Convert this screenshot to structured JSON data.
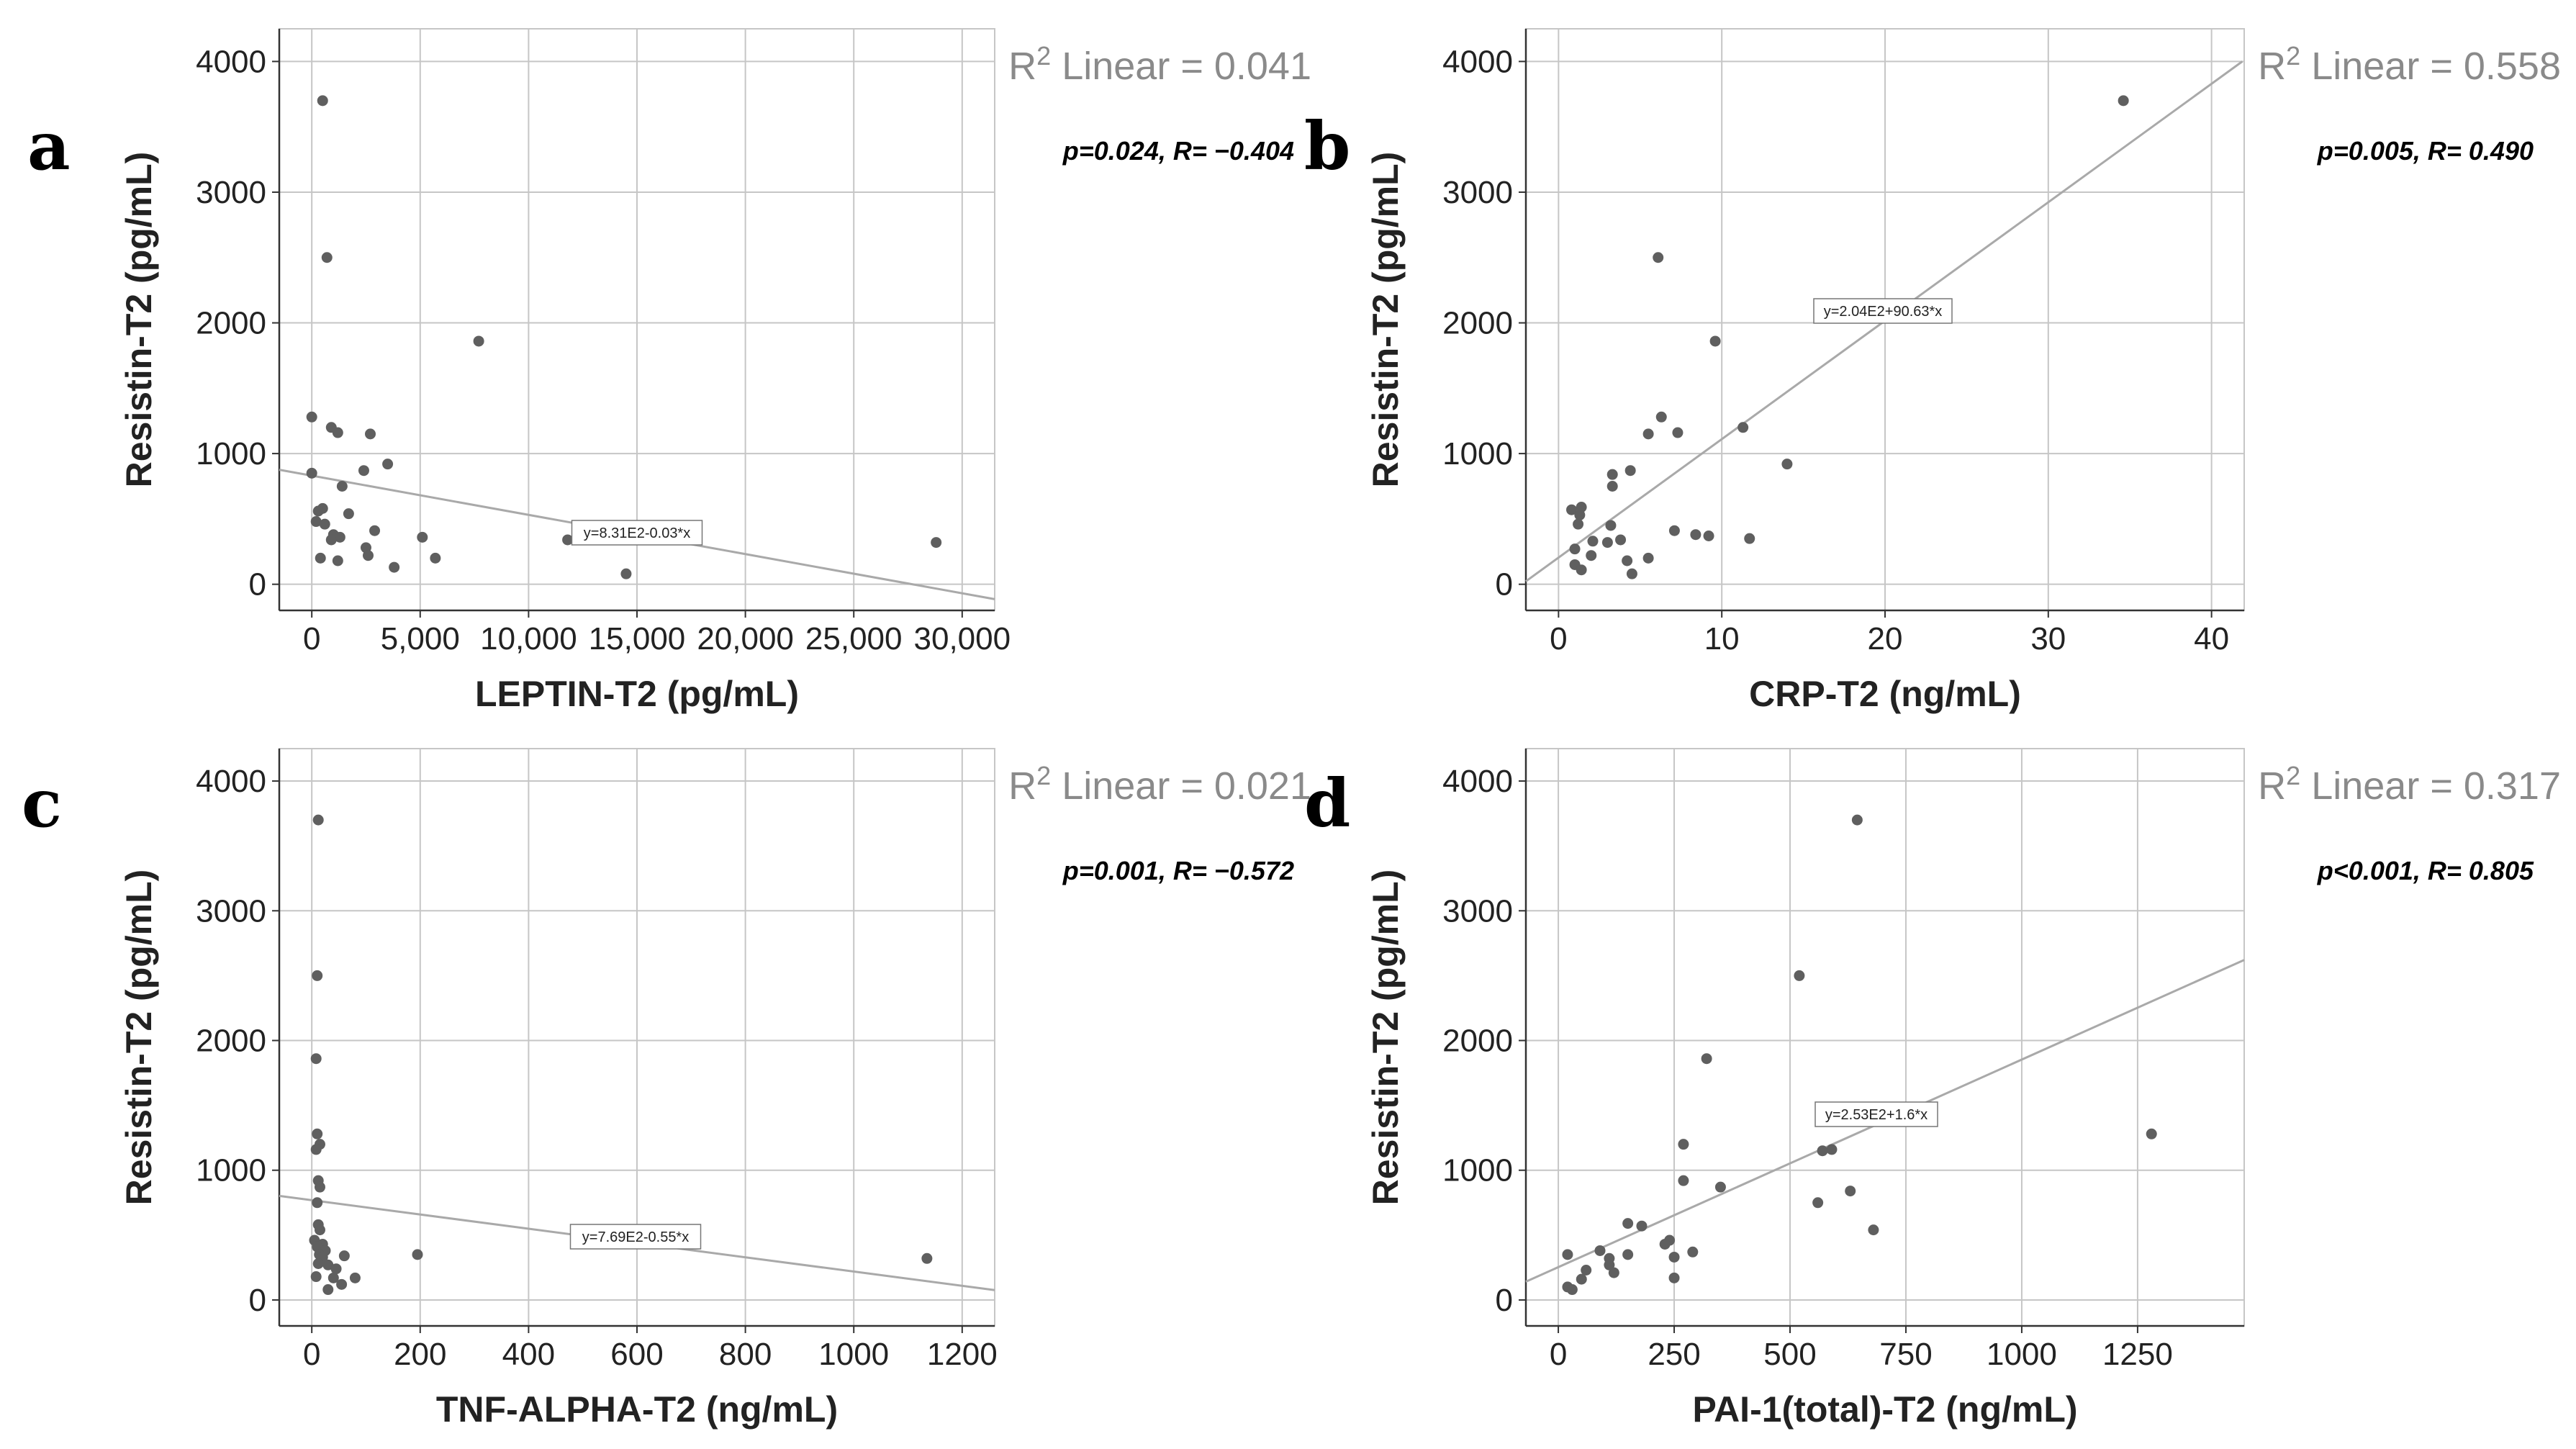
{
  "chart_data": [
    {
      "type": "scatter",
      "panel": "a",
      "title": "",
      "xlabel": "LEPTIN-T2 (pg/mL)",
      "ylabel": "Resistin-T2 (pg/mL)",
      "xlim": [
        -1500,
        31500
      ],
      "ylim": [
        -200,
        4250
      ],
      "xticks": [
        0,
        5000,
        10000,
        15000,
        20000,
        25000,
        30000
      ],
      "xtick_labels": [
        "0",
        "5,000",
        "10,000",
        "15,000",
        "20,000",
        "25,000",
        "30,000"
      ],
      "yticks": [
        0,
        1000,
        2000,
        3000,
        4000
      ],
      "ytick_labels": [
        "0",
        "1000",
        "2000",
        "3000",
        "4000"
      ],
      "r2_label": "R",
      "r2_sup": "2",
      "r2_text": " Linear = 0.041",
      "stats": "p=0.024, R= −0.404",
      "fit_label": "y=8.31E2-0.03*x",
      "fit": {
        "intercept": 831,
        "slope": -0.03
      },
      "points": [
        [
          500,
          3700
        ],
        [
          700,
          2500
        ],
        [
          7700,
          1860
        ],
        [
          0,
          1280
        ],
        [
          900,
          1200
        ],
        [
          1200,
          1160
        ],
        [
          2700,
          1150
        ],
        [
          3500,
          920
        ],
        [
          2400,
          870
        ],
        [
          0,
          850
        ],
        [
          1400,
          750
        ],
        [
          500,
          580
        ],
        [
          300,
          560
        ],
        [
          1700,
          540
        ],
        [
          200,
          480
        ],
        [
          600,
          460
        ],
        [
          2900,
          410
        ],
        [
          1000,
          380
        ],
        [
          1300,
          360
        ],
        [
          5100,
          360
        ],
        [
          900,
          340
        ],
        [
          11800,
          340
        ],
        [
          28800,
          320
        ],
        [
          2500,
          280
        ],
        [
          2600,
          220
        ],
        [
          400,
          200
        ],
        [
          1200,
          180
        ],
        [
          5700,
          200
        ],
        [
          3800,
          130
        ],
        [
          14500,
          80
        ]
      ]
    },
    {
      "type": "scatter",
      "panel": "b",
      "title": "",
      "xlabel": "CRP-T2 (ng/mL)",
      "ylabel": "Resistin-T2 (pg/mL)",
      "xlim": [
        -2,
        42
      ],
      "ylim": [
        -200,
        4250
      ],
      "xticks": [
        0,
        10,
        20,
        30,
        40
      ],
      "xtick_labels": [
        "0",
        "10",
        "20",
        "30",
        "40"
      ],
      "yticks": [
        0,
        1000,
        2000,
        3000,
        4000
      ],
      "ytick_labels": [
        "0",
        "1000",
        "2000",
        "3000",
        "4000"
      ],
      "r2_label": "R",
      "r2_sup": "2",
      "r2_text": " Linear = 0.558",
      "stats": "p=0.005, R= 0.490",
      "fit_label": "y=2.04E2+90.63*x",
      "fit": {
        "intercept": 204,
        "slope": 90.63
      },
      "points": [
        [
          34.6,
          3700
        ],
        [
          6.1,
          2500
        ],
        [
          9.6,
          1860
        ],
        [
          6.3,
          1280
        ],
        [
          7.3,
          1160
        ],
        [
          11.3,
          1200
        ],
        [
          5.5,
          1150
        ],
        [
          14,
          920
        ],
        [
          4.4,
          870
        ],
        [
          3.3,
          840
        ],
        [
          3.3,
          750
        ],
        [
          1.4,
          590
        ],
        [
          0.8,
          570
        ],
        [
          1.3,
          530
        ],
        [
          1.2,
          460
        ],
        [
          3.2,
          450
        ],
        [
          7.1,
          410
        ],
        [
          8.4,
          380
        ],
        [
          9.2,
          370
        ],
        [
          11.7,
          350
        ],
        [
          2.1,
          330
        ],
        [
          3.8,
          340
        ],
        [
          3,
          320
        ],
        [
          1,
          270
        ],
        [
          2,
          220
        ],
        [
          5.5,
          200
        ],
        [
          4.2,
          180
        ],
        [
          1,
          150
        ],
        [
          1.4,
          110
        ],
        [
          4.5,
          80
        ]
      ]
    },
    {
      "type": "scatter",
      "panel": "c",
      "title": "",
      "xlabel": "TNF-ALPHA-T2 (ng/mL)",
      "ylabel": "Resistin-T2 (pg/mL)",
      "xlim": [
        -60,
        1260
      ],
      "ylim": [
        -200,
        4250
      ],
      "xticks": [
        0,
        200,
        400,
        600,
        800,
        1000,
        1200
      ],
      "xtick_labels": [
        "0",
        "200",
        "400",
        "600",
        "800",
        "1000",
        "1200"
      ],
      "yticks": [
        0,
        1000,
        2000,
        3000,
        4000
      ],
      "ytick_labels": [
        "0",
        "1000",
        "2000",
        "3000",
        "4000"
      ],
      "r2_label": "R",
      "r2_sup": "2",
      "r2_text": " Linear = 0.021",
      "stats": "p=0.001, R= −0.572",
      "fit_label": "y=7.69E2-0.55*x",
      "fit": {
        "intercept": 769,
        "slope": -0.55
      },
      "points": [
        [
          12,
          3700
        ],
        [
          10,
          2500
        ],
        [
          8,
          1860
        ],
        [
          10,
          1280
        ],
        [
          15,
          1200
        ],
        [
          8,
          1160
        ],
        [
          12,
          920
        ],
        [
          15,
          870
        ],
        [
          10,
          750
        ],
        [
          12,
          580
        ],
        [
          15,
          540
        ],
        [
          5,
          460
        ],
        [
          20,
          430
        ],
        [
          10,
          410
        ],
        [
          25,
          380
        ],
        [
          14,
          350
        ],
        [
          20,
          330
        ],
        [
          195,
          350
        ],
        [
          1135,
          320
        ],
        [
          60,
          340
        ],
        [
          12,
          280
        ],
        [
          30,
          270
        ],
        [
          45,
          240
        ],
        [
          8,
          180
        ],
        [
          40,
          170
        ],
        [
          80,
          170
        ],
        [
          55,
          120
        ],
        [
          30,
          80
        ]
      ]
    },
    {
      "type": "scatter",
      "panel": "d",
      "title": "",
      "xlabel": "PAI-1(total)-T2 (ng/mL)",
      "ylabel": "Resistin-T2 (pg/mL)",
      "xlim": [
        -70,
        1480
      ],
      "ylim": [
        -200,
        4250
      ],
      "xticks": [
        0,
        250,
        500,
        750,
        1000,
        1250
      ],
      "xtick_labels": [
        "0",
        "250",
        "500",
        "750",
        "1000",
        "1250"
      ],
      "yticks": [
        0,
        1000,
        2000,
        3000,
        4000
      ],
      "ytick_labels": [
        "0",
        "1000",
        "2000",
        "3000",
        "4000"
      ],
      "r2_label": "R",
      "r2_sup": "2",
      "r2_text": " Linear = 0.317",
      "stats": "p<0.001, R= 0.805",
      "fit_label": "y=2.53E2+1.6*x",
      "fit": {
        "intercept": 253,
        "slope": 1.6
      },
      "points": [
        [
          645,
          3700
        ],
        [
          520,
          2500
        ],
        [
          320,
          1860
        ],
        [
          1280,
          1280
        ],
        [
          270,
          1200
        ],
        [
          590,
          1160
        ],
        [
          570,
          1150
        ],
        [
          270,
          920
        ],
        [
          350,
          870
        ],
        [
          630,
          840
        ],
        [
          560,
          750
        ],
        [
          680,
          540
        ],
        [
          150,
          590
        ],
        [
          180,
          570
        ],
        [
          240,
          460
        ],
        [
          230,
          430
        ],
        [
          90,
          380
        ],
        [
          290,
          370
        ],
        [
          20,
          350
        ],
        [
          150,
          350
        ],
        [
          110,
          320
        ],
        [
          250,
          330
        ],
        [
          60,
          230
        ],
        [
          110,
          270
        ],
        [
          120,
          210
        ],
        [
          250,
          170
        ],
        [
          50,
          160
        ],
        [
          20,
          100
        ],
        [
          30,
          80
        ]
      ]
    }
  ]
}
